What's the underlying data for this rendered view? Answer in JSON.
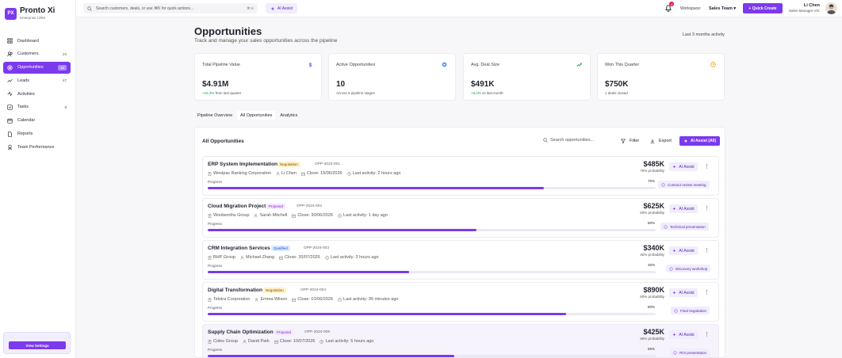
{
  "brand": {
    "logo_text": "PX",
    "name": "Pronto Xi",
    "subtitle": "Enterprise CRM"
  },
  "sidebar": {
    "items": [
      {
        "label": "Dashboard",
        "count": "",
        "icon": "grid-icon"
      },
      {
        "label": "Customers",
        "count": "24",
        "icon": "users-icon"
      },
      {
        "label": "Opportunities",
        "count": "12",
        "icon": "target-icon",
        "active": true
      },
      {
        "label": "Leads",
        "count": "47",
        "icon": "trending-icon"
      },
      {
        "label": "Activities",
        "count": "",
        "icon": "activity-icon"
      },
      {
        "label": "Tasks",
        "count": "8",
        "icon": "check-square-icon"
      },
      {
        "label": "Calendar",
        "count": "",
        "icon": "calendar-icon"
      },
      {
        "label": "Reports",
        "count": "",
        "icon": "file-icon"
      },
      {
        "label": "Team Performance",
        "count": "",
        "icon": "award-icon"
      }
    ],
    "settings_label": "View Settings"
  },
  "topbar": {
    "search_placeholder": "Search customers, deals, or use ⌘K for quick actions...",
    "search_shortcut": "⌘ K",
    "ai_assist": "AI Assist",
    "notification_count": "4",
    "workspace_label": "Workspace:",
    "workspace_value": "Sales Team",
    "quick_create": "Quick Create",
    "user_name": "Li Chen",
    "user_role": "Sales Manager VIC"
  },
  "header": {
    "title": "Opportunities",
    "subtitle": "Track and manage your sales opportunities across the pipeline",
    "range": "Last 3 months activity"
  },
  "stats": [
    {
      "label": "Total Pipeline Value",
      "value": "$4.91M",
      "delta": "+15.3%",
      "note": " from last quarter",
      "icon": "dollar-icon",
      "icon_color": "#7c3aed"
    },
    {
      "label": "Active Opportunities",
      "value": "10",
      "delta": "",
      "note": "Across 5 pipeline stages",
      "icon": "circle-icon",
      "icon_color": "#3b82f6"
    },
    {
      "label": "Avg. Deal Size",
      "value": "$491K",
      "delta": "+8.2%",
      "note": " vs last month",
      "icon": "trend-up-icon",
      "icon_color": "#16a34a"
    },
    {
      "label": "Won This Quarter",
      "value": "$750K",
      "delta": "",
      "note": "1 deals closed",
      "icon": "clock-icon",
      "icon_color": "#f59e0b"
    }
  ],
  "tabs": [
    {
      "label": "Pipeline Overview"
    },
    {
      "label": "All Opportunities",
      "active": true
    },
    {
      "label": "Analytics"
    }
  ],
  "panel": {
    "title": "All Opportunities",
    "search_placeholder": "Search opportunities...",
    "filter": "Filter",
    "export": "Export",
    "ai_all": "AI Assist (All)"
  },
  "opportunities": [
    {
      "title": "ERP System Implementation",
      "stage": "Negotiation",
      "id": "OPP-2024-001",
      "company": "Westpac Banking Corporation",
      "owner": "Li Chen",
      "close": "Close: 15/06/2026",
      "activity": "Last activity: 2 hours ago",
      "progress_label": "Progress",
      "progress": 75,
      "progress_text": "75%",
      "amount": "$485K",
      "probability": "75% probability",
      "ai": "AI Assist",
      "next": "Contract review meeting"
    },
    {
      "title": "Cloud Migration Project",
      "stage": "Proposal",
      "id": "OPP-2024-002",
      "company": "Woolworths Group",
      "owner": "Sarah Mitchell",
      "close": "Close: 30/06/2026",
      "activity": "Last activity: 1 day ago",
      "progress_label": "Progress",
      "progress": 60,
      "progress_text": "60%",
      "amount": "$625K",
      "probability": "60% probability",
      "ai": "AI Assist",
      "next": "Technical presentation"
    },
    {
      "title": "CRM Integration Services",
      "stage": "Qualified",
      "id": "OPP-2024-003",
      "company": "BHP Group",
      "owner": "Michael Zhang",
      "close": "Close: 20/07/2026",
      "activity": "Last activity: 3 hours ago",
      "progress_label": "Progress",
      "progress": 45,
      "progress_text": "45%",
      "amount": "$340K",
      "probability": "45% probability",
      "ai": "AI Assist",
      "next": "Discovery workshop"
    },
    {
      "title": "Digital Transformation",
      "stage": "Negotiation",
      "id": "OPP-2024-004",
      "company": "Telstra Corporation",
      "owner": "Emma Wilson",
      "close": "Close: 01/06/2026",
      "activity": "Last activity: 30 minutes ago",
      "progress_label": "Progress",
      "progress": 80,
      "progress_text": "80%",
      "amount": "$890K",
      "probability": "80% probability",
      "ai": "AI Assist",
      "next": "Final negotiation"
    },
    {
      "title": "Supply Chain Optimization",
      "stage": "Proposal",
      "id": "OPP-2024-005",
      "company": "Coles Group",
      "owner": "David Park",
      "close": "Close: 10/07/2026",
      "activity": "Last activity: 5 hours ago",
      "progress_label": "Progress",
      "progress": 55,
      "progress_text": "55%",
      "amount": "$425K",
      "probability": "55% probability",
      "ai": "AI Assist",
      "next": "ROI presentation"
    }
  ],
  "colors": {
    "accent": "#7c3aed",
    "negotiation": "#fef3c7",
    "proposal": "#f3e8ff",
    "qualified": "#dbeafe"
  }
}
